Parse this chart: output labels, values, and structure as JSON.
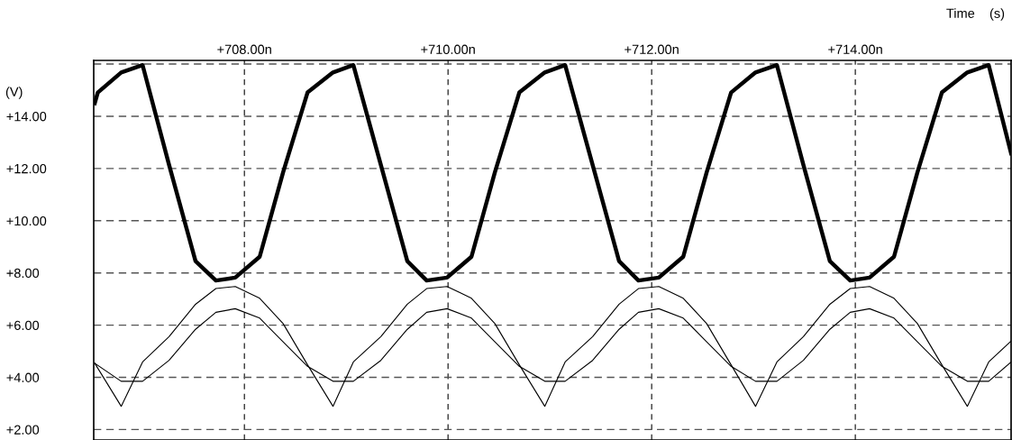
{
  "chart_data": {
    "type": "line",
    "xlabel": "Time    (s)",
    "ylabel": "(V)",
    "xlim": [
      706.52,
      715.53
    ],
    "ylim": [
      1.6,
      16.14
    ],
    "xticks": [
      {
        "value": 708,
        "label": "+708.00n"
      },
      {
        "value": 710,
        "label": "+710.00n"
      },
      {
        "value": 712,
        "label": "+712.00n"
      },
      {
        "value": 714,
        "label": "+714.00n"
      }
    ],
    "yticks": [
      {
        "value": 2,
        "label": "+2.00"
      },
      {
        "value": 4,
        "label": "+4.00"
      },
      {
        "value": 6,
        "label": "+6.00"
      },
      {
        "value": 8,
        "label": "+8.00"
      },
      {
        "value": 10,
        "label": "+10.00"
      },
      {
        "value": 12,
        "label": "+12.00"
      },
      {
        "value": 14,
        "label": "+14.00"
      },
      {
        "value": 16,
        "label": null
      }
    ],
    "grid": true,
    "line_style": "solid",
    "x": [
      706.53,
      706.79,
      707.0,
      707.26,
      707.52,
      707.72,
      707.91,
      708.15,
      708.38,
      708.62,
      708.87,
      709.07,
      709.34,
      709.6,
      709.79,
      709.99,
      710.23,
      710.46,
      710.7,
      710.95,
      711.15,
      711.42,
      711.68,
      711.87,
      712.07,
      712.31,
      712.54,
      712.78,
      713.02,
      713.23,
      713.49,
      713.75,
      713.95,
      714.14,
      714.38,
      714.61,
      714.85,
      715.1,
      715.31,
      715.53
    ],
    "series": [
      {
        "color": "#000000",
        "x": [
          706.53,
          706.56,
          706.79,
          707.0,
          707.26,
          707.52,
          707.72,
          707.91,
          708.15,
          708.38,
          708.62,
          708.87,
          709.07,
          709.34,
          709.6,
          709.79,
          709.99,
          710.23,
          710.46,
          710.7,
          710.95,
          711.15,
          711.42,
          711.68,
          711.87,
          712.07,
          712.31,
          712.54,
          712.78,
          713.02,
          713.23,
          713.49,
          713.75,
          713.95,
          714.14,
          714.38,
          714.61,
          714.85,
          715.1,
          715.31,
          715.53
        ],
        "values": [
          14.5,
          14.91,
          15.68,
          15.96,
          12.14,
          8.45,
          7.71,
          7.82,
          8.62,
          11.85,
          14.91,
          15.68,
          15.96,
          12.14,
          8.45,
          7.71,
          7.82,
          8.62,
          11.85,
          14.91,
          15.68,
          15.96,
          12.14,
          8.45,
          7.71,
          7.82,
          8.62,
          11.85,
          14.91,
          15.68,
          15.96,
          12.14,
          8.45,
          7.71,
          7.82,
          8.62,
          11.85,
          14.91,
          15.68,
          15.96,
          12.58
        ]
      },
      {
        "color": "#000000",
        "values": [
          4.54,
          2.89,
          4.59,
          5.56,
          6.8,
          7.4,
          7.48,
          7.03,
          6.06,
          4.48,
          2.89,
          4.59,
          5.56,
          6.8,
          7.4,
          7.48,
          7.03,
          6.06,
          4.48,
          2.89,
          4.59,
          5.56,
          6.8,
          7.4,
          7.48,
          7.03,
          6.06,
          4.48,
          2.89,
          4.59,
          5.56,
          6.8,
          7.4,
          7.48,
          7.03,
          6.06,
          4.48,
          2.89,
          4.59,
          5.39
        ]
      },
      {
        "color": "#000000",
        "values": [
          4.54,
          3.85,
          3.85,
          4.65,
          5.84,
          6.49,
          6.63,
          6.27,
          5.36,
          4.42,
          3.85,
          3.85,
          4.65,
          5.84,
          6.49,
          6.63,
          6.27,
          5.36,
          4.42,
          3.85,
          3.85,
          4.65,
          5.84,
          6.49,
          6.63,
          6.27,
          5.36,
          4.42,
          3.85,
          3.85,
          4.65,
          5.84,
          6.49,
          6.63,
          6.27,
          5.36,
          4.42,
          3.85,
          3.85,
          4.59
        ]
      }
    ]
  }
}
